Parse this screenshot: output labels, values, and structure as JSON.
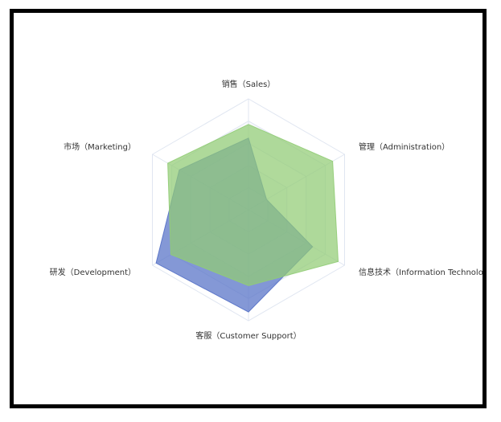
{
  "chart_data": {
    "type": "radar",
    "indicators": [
      "销售（Sales）",
      "管理（Administration）",
      "信息技术（Information Technology）",
      "客服（Customer Support）",
      "研发（Development）",
      "市场（Marketing）"
    ],
    "max": [
      6500,
      16000,
      30000,
      38000,
      52000,
      25000
    ],
    "series": [
      {
        "values": [
          4200,
          3000,
          20000,
          35000,
          50000,
          18000
        ],
        "color": "#5470c6"
      },
      {
        "values": [
          5000,
          14000,
          28000,
          26000,
          42000,
          21000
        ],
        "color": "#91cc75"
      }
    ],
    "split_number": 5,
    "colors": {
      "split_area": [
        "#ffffff",
        "#f8f9fc"
      ],
      "split_line": "#e0e6f1"
    }
  }
}
